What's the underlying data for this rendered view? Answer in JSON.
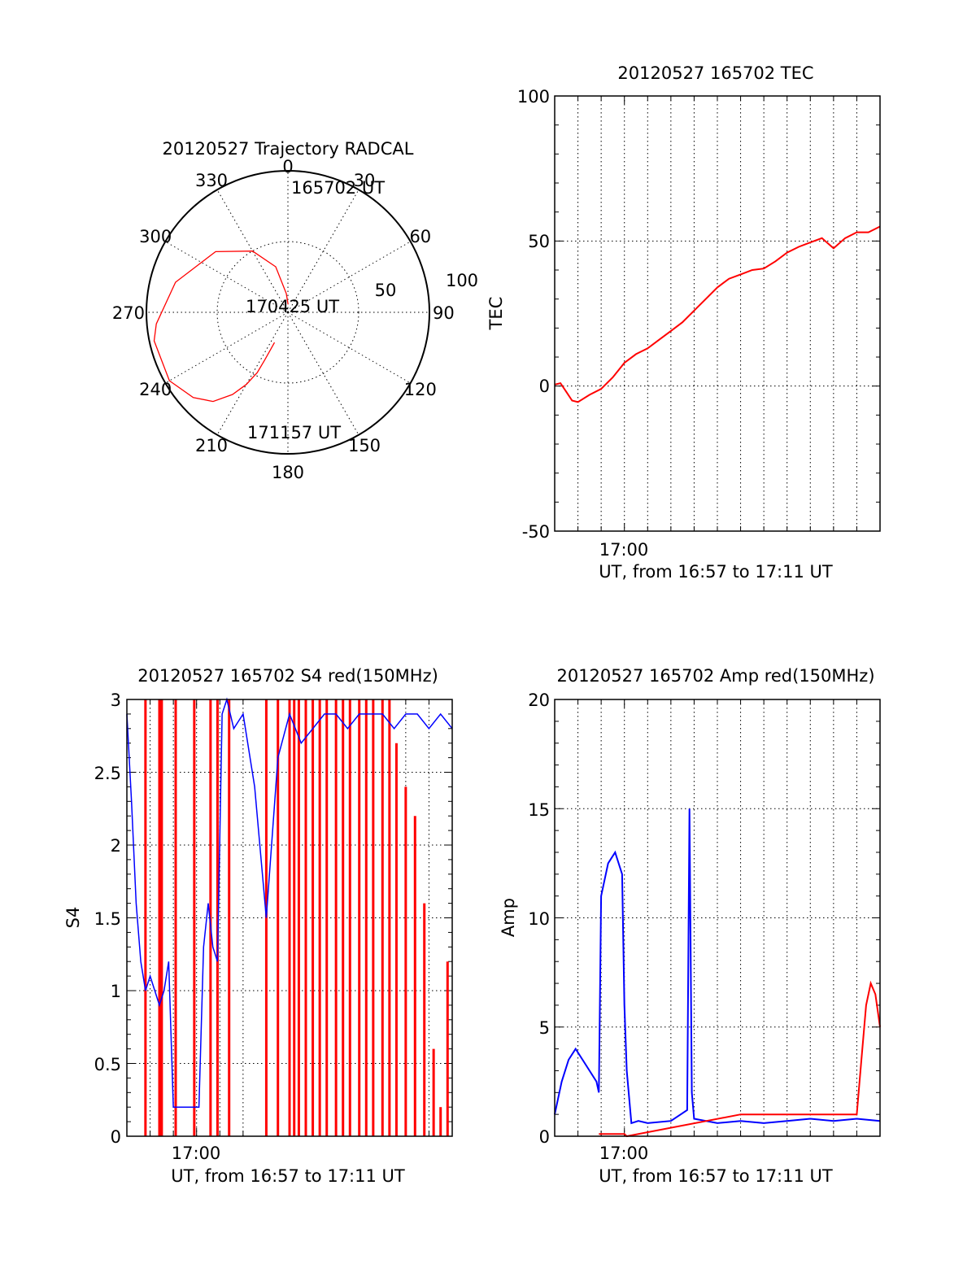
{
  "colors": {
    "red": "#ff0000",
    "blue": "#0000ff",
    "axis": "#000000"
  },
  "chart_data": [
    {
      "id": "trajectory",
      "type": "scatter",
      "title": "20120527 Trajectory RADCAL",
      "projection": "polar",
      "azimuth_labels": [
        "0",
        "30",
        "60",
        "90",
        "120",
        "150",
        "180",
        "210",
        "240",
        "270",
        "300",
        "330"
      ],
      "azimuth_ticks": [
        0,
        30,
        60,
        90,
        120,
        150,
        180,
        210,
        240,
        270,
        300,
        330
      ],
      "elevation_labels": [
        "50",
        "100"
      ],
      "elevation_rings": [
        50,
        100
      ],
      "annotations": [
        "165702 UT",
        "170425 UT",
        "171157 UT"
      ],
      "series": [
        {
          "color": "red",
          "points": [
            [
              1,
              85
            ],
            [
              355,
              78
            ],
            [
              345,
              60
            ],
            [
              330,
              45
            ],
            [
              310,
              30
            ],
            [
              285,
              16
            ],
            [
              265,
              6
            ],
            [
              258,
              3
            ],
            [
              240,
              3
            ],
            [
              228,
              9
            ],
            [
              220,
              16
            ],
            [
              214,
              27
            ],
            [
              210,
              37
            ],
            [
              207,
              47
            ],
            [
              206,
              56
            ],
            [
              205,
              64
            ],
            [
              204,
              69
            ]
          ]
        }
      ]
    },
    {
      "id": "tec",
      "type": "line",
      "title": "20120527 165702 TEC",
      "xlabel": "UT, from 16:57 to 17:11 UT",
      "ylabel": "TEC",
      "ylim": [
        -50,
        100
      ],
      "yticks": [
        "-50",
        "0",
        "50",
        "100"
      ],
      "xticks": [
        "17:00"
      ],
      "grid": true,
      "series": [
        {
          "color": "red",
          "x": [
            0,
            0.25,
            0.5,
            0.75,
            1.0,
            1.5,
            2.0,
            2.5,
            3.0,
            3.5,
            4.0,
            4.5,
            5.0,
            5.5,
            6.0,
            6.5,
            7.0,
            7.5,
            8.0,
            8.5,
            9.0,
            9.5,
            10.0,
            10.5,
            11.0,
            11.5,
            12.0,
            12.5,
            13.0,
            13.5,
            14.0
          ],
          "y": [
            0.5,
            1.0,
            -2.0,
            -5.0,
            -5.5,
            -3.0,
            -1.0,
            3.0,
            8.0,
            11.0,
            13.0,
            16.0,
            19.0,
            22.0,
            26.0,
            30.0,
            34.0,
            37.0,
            38.5,
            40.0,
            40.5,
            43.0,
            46.0,
            48.0,
            49.5,
            51.0,
            47.5,
            51.0,
            53.0,
            53.0,
            55.0
          ]
        }
      ]
    },
    {
      "id": "s4",
      "type": "line",
      "title": "20120527 165702 S4 red(150MHz)",
      "xlabel": "UT, from 16:57 to 17:11 UT",
      "ylabel": "S4",
      "ylim": [
        0,
        3
      ],
      "yticks": [
        "0",
        "0.5",
        "1",
        "1.5",
        "2",
        "2.5",
        "3"
      ],
      "xticks": [
        "17:00"
      ],
      "grid": true,
      "series": [
        {
          "color": "blue",
          "x": [
            0,
            0.2,
            0.4,
            0.6,
            0.8,
            1.0,
            1.2,
            1.4,
            1.6,
            1.8,
            2.0,
            2.2,
            2.5,
            2.8,
            3.1,
            3.3,
            3.5,
            3.7,
            3.9,
            4.1,
            4.3,
            4.6,
            5.0,
            5.5,
            6.0,
            6.5,
            7.0,
            7.5,
            8.0,
            8.5,
            9.0,
            9.5,
            10.0,
            10.5,
            11.0,
            11.5,
            12.0,
            12.5,
            13.0,
            13.5,
            14.0
          ],
          "y": [
            2.9,
            2.3,
            1.6,
            1.2,
            1.0,
            1.1,
            1.0,
            0.9,
            1.0,
            1.2,
            0.2,
            0.2,
            0.2,
            0.2,
            0.2,
            1.3,
            1.6,
            1.3,
            1.2,
            2.9,
            3.0,
            2.8,
            2.9,
            2.4,
            1.5,
            2.6,
            2.9,
            2.7,
            2.8,
            2.9,
            2.9,
            2.8,
            2.9,
            2.9,
            2.9,
            2.8,
            2.9,
            2.9,
            2.8,
            2.9,
            2.8
          ]
        },
        {
          "color": "red",
          "x": [
            0.8,
            1.4,
            1.5,
            2.1,
            2.9,
            3.6,
            3.9,
            4.4,
            6.0,
            6.5,
            7.0,
            7.2,
            7.4,
            7.7,
            8.0,
            8.3,
            8.6,
            9.0,
            9.3,
            9.6,
            10.0,
            10.3,
            10.6,
            11.0,
            11.3,
            11.6,
            12.0,
            12.4,
            12.8,
            13.2,
            13.5,
            13.8
          ],
          "y": [
            3.0,
            3.0,
            3.0,
            3.0,
            3.0,
            3.0,
            3.0,
            3.0,
            3.0,
            3.0,
            3.0,
            3.0,
            3.0,
            3.0,
            3.0,
            3.0,
            3.0,
            3.0,
            3.0,
            3.0,
            3.0,
            3.0,
            3.0,
            3.0,
            3.0,
            2.7,
            2.4,
            2.2,
            1.6,
            0.6,
            0.2,
            1.2
          ]
        }
      ]
    },
    {
      "id": "amp",
      "type": "line",
      "title": "20120527 165702 Amp red(150MHz)",
      "xlabel": "UT, from 16:57 to 17:11 UT",
      "ylabel": "Amp",
      "ylim": [
        0,
        20
      ],
      "yticks": [
        "0",
        "5",
        "10",
        "15",
        "20"
      ],
      "xticks": [
        "17:00"
      ],
      "grid": true,
      "series": [
        {
          "color": "blue",
          "x": [
            0,
            0.3,
            0.6,
            0.9,
            1.2,
            1.5,
            1.8,
            1.9,
            2.0,
            2.3,
            2.6,
            2.9,
            3.0,
            3.1,
            3.3,
            3.6,
            4.0,
            5.0,
            5.7,
            5.8,
            5.9,
            6.0,
            7.0,
            8.0,
            9.0,
            10.0,
            11.0,
            12.0,
            13.0,
            14.0
          ],
          "y": [
            1.0,
            2.5,
            3.5,
            4.0,
            3.5,
            3.0,
            2.5,
            2.0,
            11.0,
            12.5,
            13.0,
            12.0,
            6.0,
            3.0,
            0.6,
            0.7,
            0.6,
            0.7,
            1.2,
            15.0,
            2.0,
            0.8,
            0.6,
            0.7,
            0.6,
            0.7,
            0.8,
            0.7,
            0.8,
            0.7
          ]
        },
        {
          "color": "red",
          "x": [
            1.9,
            2.5,
            3.0,
            3.1,
            8.0,
            13.0,
            13.2,
            13.4,
            13.6,
            13.8,
            14.0
          ],
          "y": [
            0.1,
            0.1,
            0.1,
            0.0,
            1.0,
            1.0,
            3.5,
            6.0,
            7.0,
            6.5,
            5.0
          ]
        }
      ]
    }
  ]
}
